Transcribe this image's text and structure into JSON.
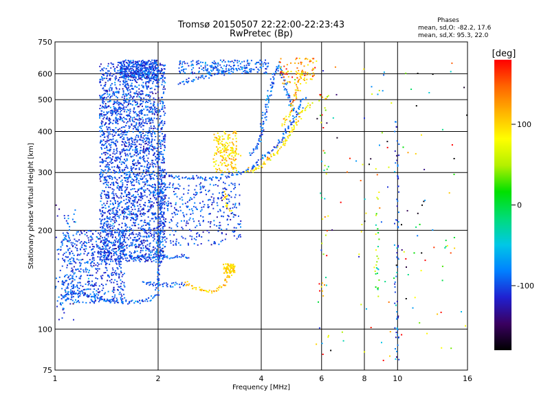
{
  "chart_data": {
    "type": "scatter",
    "title": "Tromsø 20150507 22:22:00-22:23:43",
    "subtitle": "RwPretec (Bp)",
    "xlabel": "Frequency [MHz]",
    "ylabel": "Stationary phase Virtual Height [km]",
    "xscale": "log",
    "yscale": "log",
    "xlim": [
      1,
      16
    ],
    "ylim": [
      75,
      750
    ],
    "xticks": [
      1,
      2,
      4,
      6,
      8,
      10,
      16
    ],
    "xtick_labels": [
      "1",
      "2",
      "4",
      "6",
      "8",
      "10",
      "16"
    ],
    "yticks": [
      75,
      100,
      200,
      300,
      400,
      500,
      600,
      750
    ],
    "ytick_labels": [
      "75",
      "100",
      "200",
      "300",
      "400",
      "500",
      "600",
      "750"
    ],
    "grid": true,
    "stats": {
      "header": "Phases",
      "line_o": "mean, sd,O: -82.2, 17.6",
      "line_x": "mean, sd,X:  95.3, 22.0"
    },
    "colorbar": {
      "label": "[deg]",
      "min": -180,
      "max": 180,
      "ticks": [
        100,
        0,
        -100
      ],
      "tick_labels": [
        "100",
        "0",
        "-100"
      ],
      "colors": [
        "#000000",
        "#3a0060",
        "#2020d0",
        "#0080ff",
        "#00c8e6",
        "#00dc78",
        "#00e000",
        "#b4f000",
        "#ffff00",
        "#ffb400",
        "#ff6400",
        "#ff0000"
      ]
    },
    "series": [
      {
        "traces": [
          {
            "type": "curve",
            "points": [
              [
                1.05,
                125
              ],
              [
                1.1,
                129
              ],
              [
                1.2,
                128
              ],
              [
                1.3,
                125
              ],
              [
                1.45,
                122
              ],
              [
                1.6,
                121
              ],
              [
                1.75,
                121
              ],
              [
                1.9,
                123
              ],
              [
                1.98,
                127
              ]
            ],
            "phase": -95,
            "sd": 15
          },
          {
            "type": "curve",
            "points": [
              [
                1.98,
                127
              ],
              [
                2.0,
                135
              ],
              [
                2.01,
                150
              ],
              [
                2.02,
                200
              ],
              [
                2.03,
                270
              ],
              [
                2.05,
                310
              ]
            ],
            "phase": -100,
            "sd": 15
          },
          {
            "type": "curve",
            "points": [
              [
                2.05,
                295
              ],
              [
                2.3,
                290
              ],
              [
                2.7,
                288
              ],
              [
                3.0,
                289
              ],
              [
                3.3,
                295
              ],
              [
                3.6,
                302
              ],
              [
                3.85,
                315
              ],
              [
                4.0,
                330
              ],
              [
                4.2,
                345
              ],
              [
                4.4,
                360
              ],
              [
                4.6,
                380
              ],
              [
                4.8,
                410
              ],
              [
                5.0,
                440
              ],
              [
                5.2,
                480
              ],
              [
                5.4,
                510
              ]
            ],
            "phase": -95,
            "sd": 15
          },
          {
            "type": "curve",
            "points": [
              [
                3.7,
                340
              ],
              [
                3.9,
                360
              ],
              [
                4.0,
                390
              ],
              [
                4.1,
                440
              ],
              [
                4.2,
                500
              ],
              [
                4.3,
                560
              ],
              [
                4.4,
                610
              ],
              [
                4.5,
                640
              ],
              [
                4.6,
                600
              ],
              [
                4.7,
                540
              ],
              [
                4.85,
                500
              ],
              [
                5.0,
                460
              ]
            ],
            "phase": -90,
            "sd": 15
          },
          {
            "type": "curve",
            "points": [
              [
                2.3,
                560
              ],
              [
                2.5,
                575
              ],
              [
                2.8,
                590
              ],
              [
                3.1,
                605
              ],
              [
                3.4,
                620
              ],
              [
                3.7,
                630
              ]
            ],
            "phase": -90,
            "sd": 15
          },
          {
            "type": "curve",
            "points": [
              [
                1.5,
                168
              ],
              [
                1.7,
                167
              ],
              [
                1.9,
                166
              ],
              [
                2.1,
                166
              ],
              [
                2.3,
                166
              ],
              [
                2.5,
                165
              ]
            ],
            "phase": -95,
            "sd": 12
          },
          {
            "type": "curve",
            "points": [
              [
                1.8,
                138
              ],
              [
                2.0,
                137
              ],
              [
                2.2,
                137
              ],
              [
                2.4,
                137
              ]
            ],
            "phase": -95,
            "sd": 12
          },
          {
            "type": "curve",
            "points": [
              [
                3.6,
                300
              ],
              [
                3.9,
                310
              ],
              [
                4.1,
                320
              ],
              [
                4.3,
                335
              ],
              [
                4.5,
                350
              ],
              [
                4.7,
                375
              ],
              [
                4.9,
                400
              ],
              [
                5.1,
                430
              ],
              [
                5.3,
                460
              ],
              [
                5.6,
                490
              ]
            ],
            "phase": 95,
            "sd": 20
          },
          {
            "type": "curve",
            "points": [
              [
                4.6,
                420
              ],
              [
                4.8,
                440
              ],
              [
                4.9,
                470
              ],
              [
                5.0,
                500
              ],
              [
                5.1,
                550
              ],
              [
                5.2,
                590
              ],
              [
                5.3,
                620
              ]
            ],
            "phase": 110,
            "sd": 25
          },
          {
            "type": "curve",
            "points": [
              [
                2.4,
                138
              ],
              [
                2.6,
                133
              ],
              [
                2.8,
                130
              ],
              [
                3.0,
                132
              ],
              [
                3.1,
                136
              ],
              [
                3.2,
                142
              ],
              [
                3.3,
                150
              ]
            ],
            "phase": 105,
            "sd": 15
          },
          {
            "type": "curve",
            "points": [
              [
                3.0,
                375
              ],
              [
                3.1,
                360
              ],
              [
                3.2,
                350
              ],
              [
                3.3,
                345
              ],
              [
                3.5,
                340
              ]
            ],
            "phase": 100,
            "sd": 15
          },
          {
            "type": "curve",
            "points": [
              [
                3.1,
                265
              ],
              [
                3.15,
                248
              ],
              [
                3.2,
                235
              ],
              [
                3.25,
                228
              ]
            ],
            "phase": 95,
            "sd": 15
          },
          {
            "type": "cloud",
            "x": [
              1.35,
              2.1
            ],
            "y": [
              160,
              650
            ],
            "n": 2600,
            "phase": -100,
            "sd": 15
          },
          {
            "type": "cloud",
            "x": [
              1.05,
              1.6
            ],
            "y": [
              120,
              200
            ],
            "n": 600,
            "phase": -100,
            "sd": 15
          },
          {
            "type": "cloud",
            "x": [
              1.55,
              2.0
            ],
            "y": [
              580,
              660
            ],
            "n": 300,
            "phase": -100,
            "sd": 15
          },
          {
            "type": "cloud",
            "x": [
              2.0,
              3.5
            ],
            "y": [
              180,
              280
            ],
            "n": 350,
            "phase": -100,
            "sd": 15
          },
          {
            "type": "cloud",
            "x": [
              2.3,
              4.2
            ],
            "y": [
              600,
              660
            ],
            "n": 200,
            "phase": -90,
            "sd": 15
          },
          {
            "type": "cloud",
            "x": [
              1.0,
              1.15
            ],
            "y": [
              105,
              240
            ],
            "n": 80,
            "phase": -95,
            "sd": 20
          },
          {
            "type": "cloud",
            "x": [
              2.9,
              3.4
            ],
            "y": [
              300,
              400
            ],
            "n": 150,
            "phase": 100,
            "sd": 20
          },
          {
            "type": "cloud",
            "x": [
              3.1,
              3.35
            ],
            "y": [
              148,
              158
            ],
            "n": 70,
            "phase": 100,
            "sd": 15
          },
          {
            "type": "cloud",
            "x": [
              4.5,
              5.8
            ],
            "y": [
              560,
              670
            ],
            "n": 90,
            "phase": 120,
            "sd": 35
          },
          {
            "type": "cloud",
            "x": [
              5.7,
              16
            ],
            "y": [
              80,
              650
            ],
            "n": 130,
            "phase": 0,
            "sd": 120
          },
          {
            "type": "cloud",
            "x": [
              9.8,
              10.1
            ],
            "y": [
              80,
              450
            ],
            "n": 70,
            "phase": -90,
            "sd": 25
          },
          {
            "type": "cloud",
            "x": [
              8.6,
              8.9
            ],
            "y": [
              120,
              320
            ],
            "n": 30,
            "phase": 60,
            "sd": 60
          },
          {
            "type": "cloud",
            "x": [
              5.9,
              6.3
            ],
            "y": [
              120,
              520
            ],
            "n": 40,
            "phase": 60,
            "sd": 80
          }
        ]
      }
    ]
  }
}
